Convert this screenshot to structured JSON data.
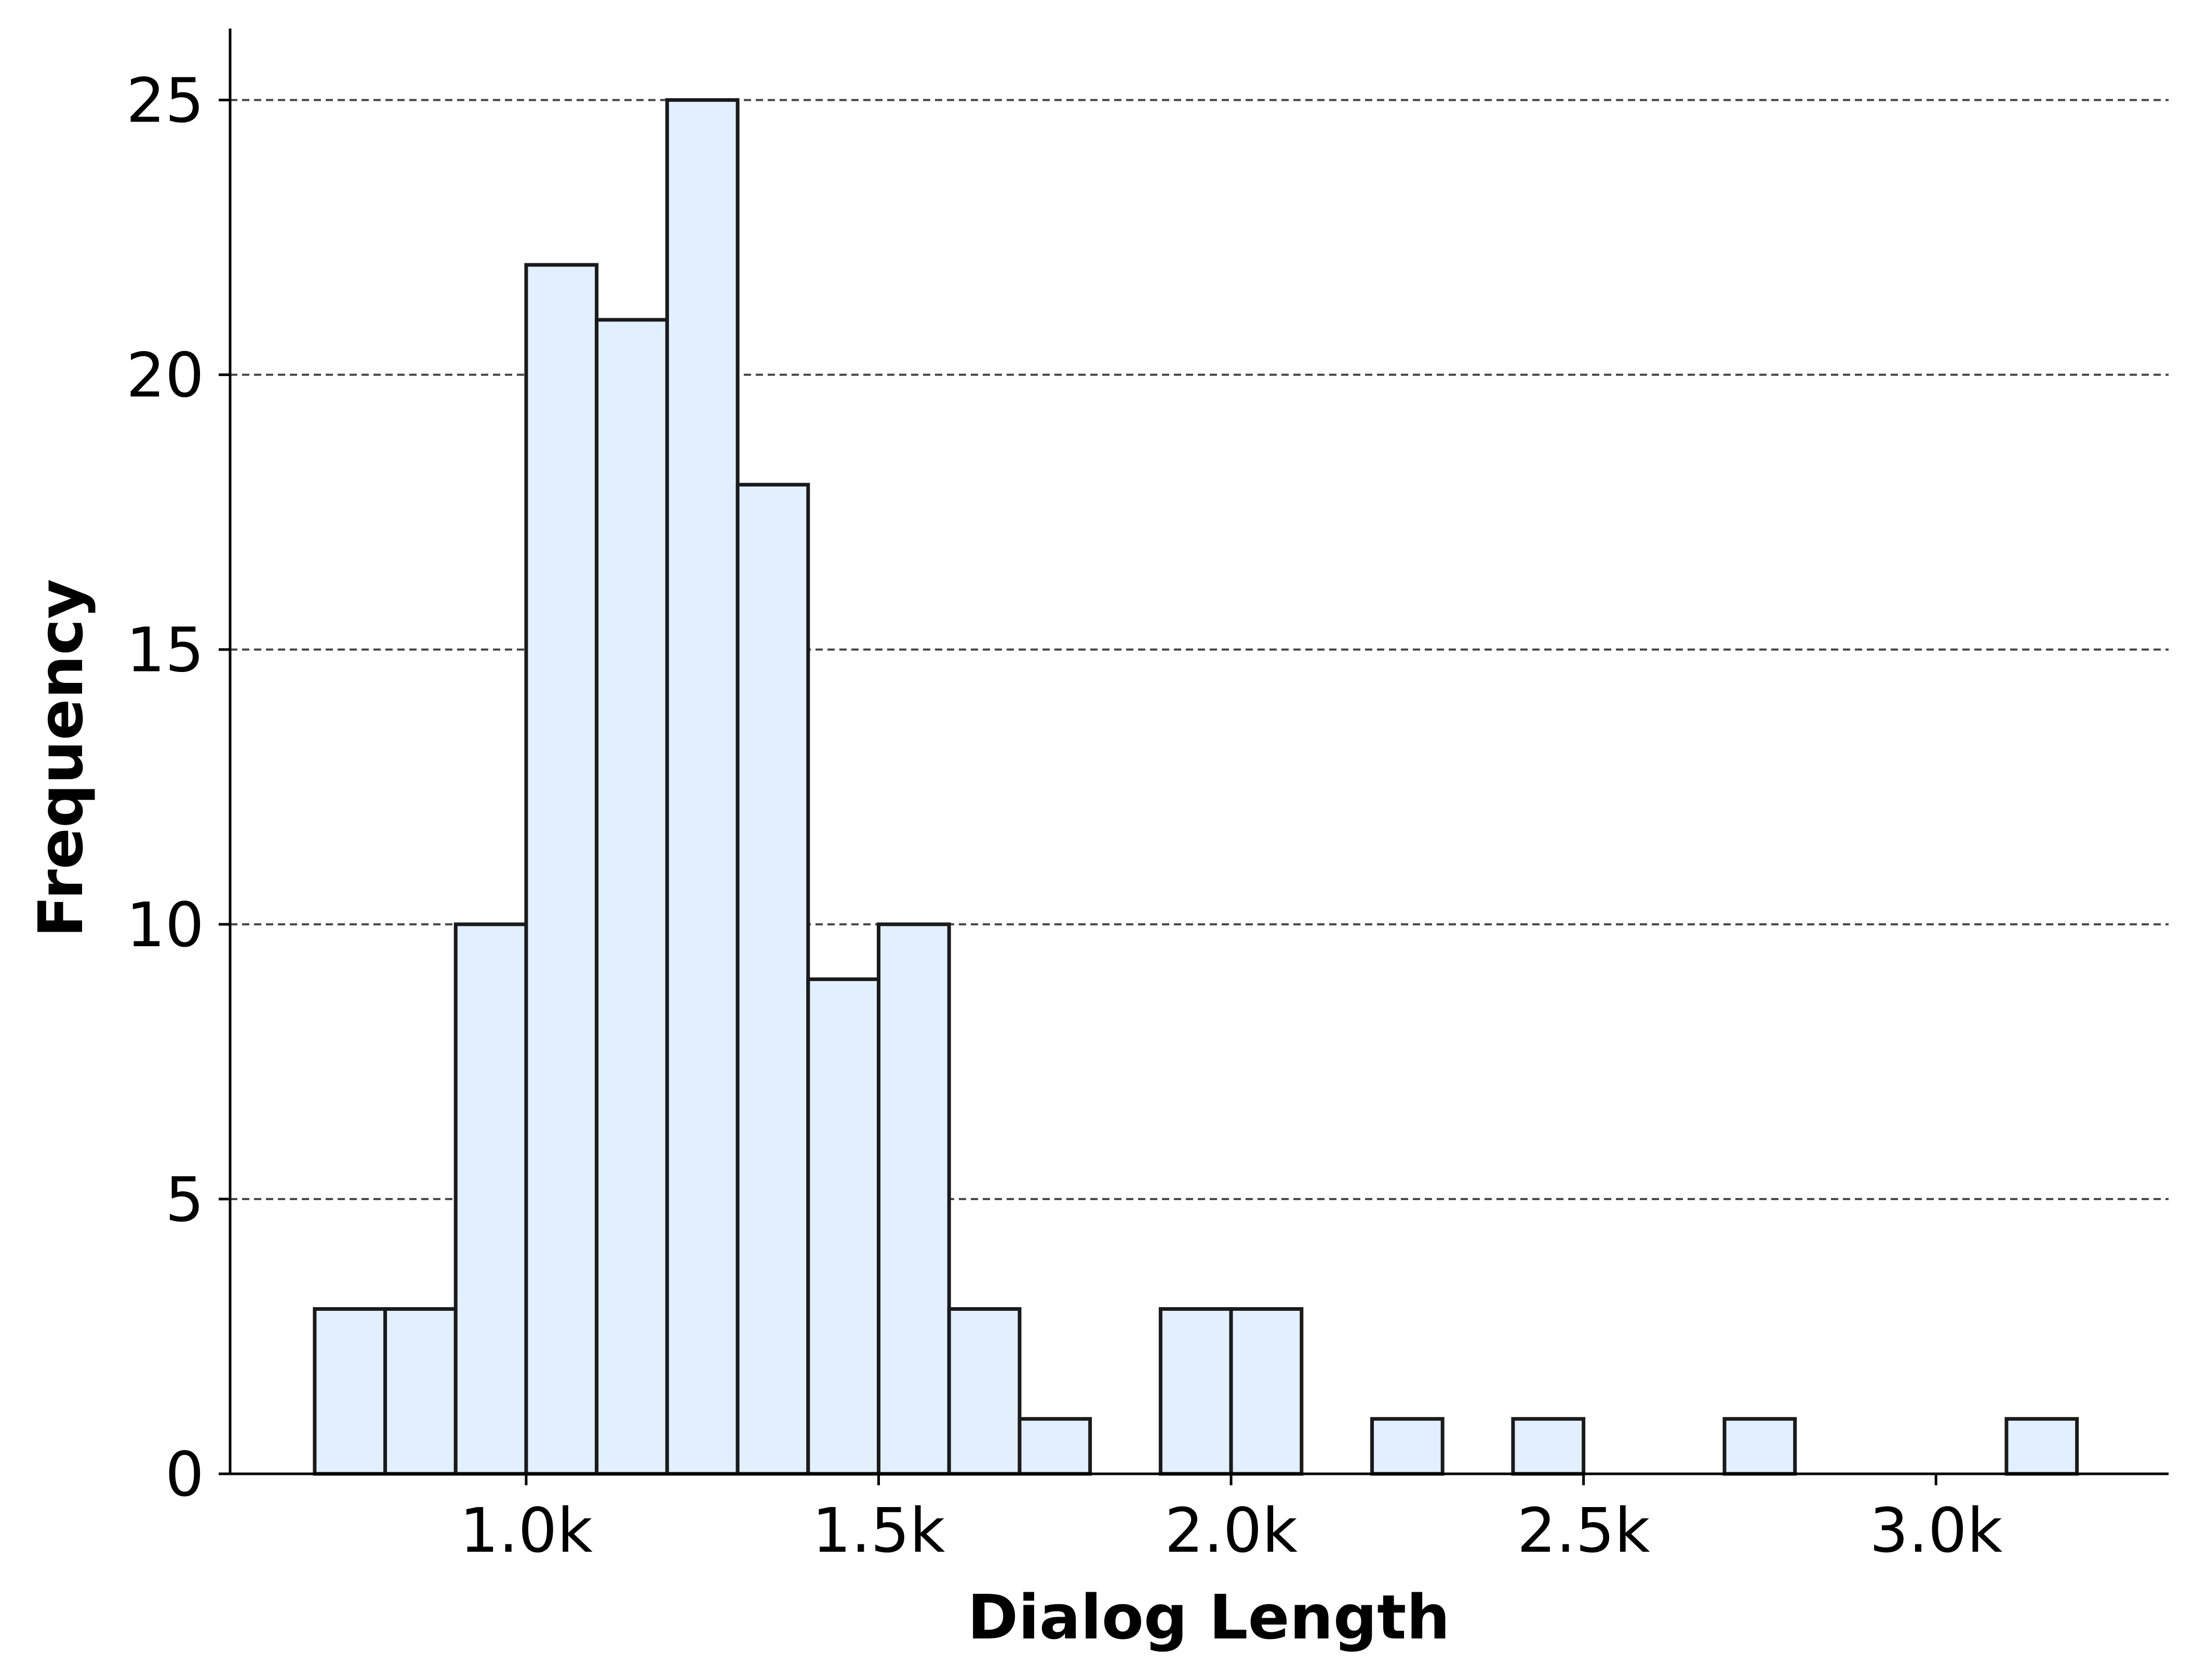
{
  "chart_data": {
    "type": "bar",
    "subtype": "histogram",
    "title": "",
    "xlabel": "Dialog Length",
    "ylabel": "Frequency",
    "bin_width": 100,
    "bins": [
      {
        "start": 700,
        "end": 800,
        "count": 3
      },
      {
        "start": 800,
        "end": 900,
        "count": 3
      },
      {
        "start": 900,
        "end": 1000,
        "count": 10
      },
      {
        "start": 1000,
        "end": 1100,
        "count": 22
      },
      {
        "start": 1100,
        "end": 1200,
        "count": 21
      },
      {
        "start": 1200,
        "end": 1300,
        "count": 25
      },
      {
        "start": 1300,
        "end": 1400,
        "count": 18
      },
      {
        "start": 1400,
        "end": 1500,
        "count": 9
      },
      {
        "start": 1500,
        "end": 1600,
        "count": 10
      },
      {
        "start": 1600,
        "end": 1700,
        "count": 3
      },
      {
        "start": 1700,
        "end": 1800,
        "count": 1
      },
      {
        "start": 1800,
        "end": 1900,
        "count": 0
      },
      {
        "start": 1900,
        "end": 2000,
        "count": 3
      },
      {
        "start": 2000,
        "end": 2100,
        "count": 3
      },
      {
        "start": 2100,
        "end": 2200,
        "count": 0
      },
      {
        "start": 2200,
        "end": 2300,
        "count": 1
      },
      {
        "start": 2300,
        "end": 2400,
        "count": 0
      },
      {
        "start": 2400,
        "end": 2500,
        "count": 1
      },
      {
        "start": 2500,
        "end": 2600,
        "count": 0
      },
      {
        "start": 2600,
        "end": 2700,
        "count": 0
      },
      {
        "start": 2700,
        "end": 2800,
        "count": 1
      },
      {
        "start": 2800,
        "end": 2900,
        "count": 0
      },
      {
        "start": 2900,
        "end": 3000,
        "count": 0
      },
      {
        "start": 3000,
        "end": 3100,
        "count": 0
      },
      {
        "start": 3100,
        "end": 3200,
        "count": 1
      }
    ],
    "xlim": [
      580,
      3330
    ],
    "ylim": [
      0,
      26.3
    ],
    "xticks": [
      {
        "value": 1000,
        "label": "1.0k"
      },
      {
        "value": 1500,
        "label": "1.5k"
      },
      {
        "value": 2000,
        "label": "2.0k"
      },
      {
        "value": 2500,
        "label": "2.5k"
      },
      {
        "value": 3000,
        "label": "3.0k"
      }
    ],
    "yticks": [
      {
        "value": 0,
        "label": "0"
      },
      {
        "value": 5,
        "label": "5"
      },
      {
        "value": 10,
        "label": "10"
      },
      {
        "value": 15,
        "label": "15"
      },
      {
        "value": 20,
        "label": "20"
      },
      {
        "value": 25,
        "label": "25"
      }
    ],
    "grid": {
      "axis": "y",
      "style": "dashed"
    },
    "legend": "none",
    "colors": {
      "bar_fill": "#e2efff",
      "bar_edge": "#1a1a1a",
      "grid": "#444444",
      "axis": "#000000"
    }
  }
}
